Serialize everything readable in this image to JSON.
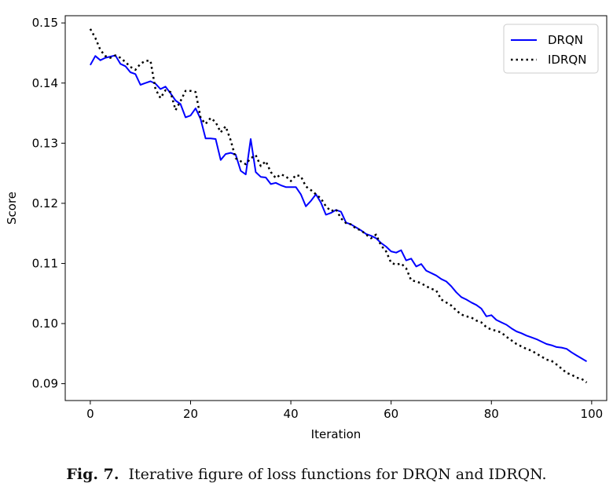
{
  "caption": {
    "label": "Fig. 7.",
    "text": "Iterative figure of loss functions for DRQN and IDRQN."
  },
  "chart_data": {
    "type": "line",
    "title": "",
    "xlabel": "Iteration",
    "ylabel": "Score",
    "xlim": [
      -5,
      103
    ],
    "ylim": [
      0.0872,
      0.1512
    ],
    "xticks": [
      0,
      20,
      40,
      60,
      80,
      100
    ],
    "yticks": [
      0.09,
      0.1,
      0.11,
      0.12,
      0.13,
      0.14,
      0.15
    ],
    "ytick_labels": [
      "0.09",
      "0.10",
      "0.11",
      "0.12",
      "0.13",
      "0.14",
      "0.15"
    ],
    "grid": false,
    "legend_position": "top-right",
    "series": [
      {
        "name": "DRQN",
        "style": "solid",
        "color": "#0000ff",
        "x": [
          0,
          1,
          2,
          3,
          4,
          5,
          6,
          7,
          8,
          9,
          10,
          11,
          12,
          13,
          14,
          15,
          16,
          17,
          18,
          19,
          20,
          21,
          22,
          23,
          24,
          25,
          26,
          27,
          28,
          29,
          30,
          31,
          32,
          33,
          34,
          35,
          36,
          37,
          38,
          39,
          40,
          41,
          42,
          43,
          44,
          45,
          46,
          47,
          48,
          49,
          50,
          51,
          52,
          53,
          54,
          55,
          56,
          57,
          58,
          59,
          60,
          61,
          62,
          63,
          64,
          65,
          66,
          67,
          68,
          69,
          70,
          71,
          72,
          73,
          74,
          75,
          76,
          77,
          78,
          79,
          80,
          81,
          82,
          83,
          84,
          85,
          86,
          87,
          88,
          89,
          90,
          91,
          92,
          93,
          94,
          95,
          96,
          97,
          98,
          99
        ],
        "y": [
          0.143,
          0.1445,
          0.1438,
          0.1442,
          0.1444,
          0.1446,
          0.1432,
          0.1428,
          0.1418,
          0.1415,
          0.1397,
          0.14,
          0.1403,
          0.1399,
          0.139,
          0.1394,
          0.1383,
          0.1371,
          0.1365,
          0.1343,
          0.1346,
          0.1358,
          0.134,
          0.1308,
          0.1308,
          0.1307,
          0.1272,
          0.1282,
          0.1284,
          0.1281,
          0.1254,
          0.1248,
          0.1307,
          0.1252,
          0.1244,
          0.1243,
          0.1232,
          0.1234,
          0.123,
          0.1227,
          0.1227,
          0.1227,
          0.1215,
          0.1195,
          0.1204,
          0.1215,
          0.1201,
          0.1181,
          0.1184,
          0.1189,
          0.1186,
          0.1168,
          0.1165,
          0.116,
          0.1155,
          0.1149,
          0.1146,
          0.1142,
          0.1134,
          0.1128,
          0.112,
          0.1118,
          0.1122,
          0.1105,
          0.1108,
          0.1095,
          0.1099,
          0.1088,
          0.1084,
          0.108,
          0.1074,
          0.107,
          0.1062,
          0.1052,
          0.1044,
          0.104,
          0.1035,
          0.1031,
          0.1025,
          0.1012,
          0.1014,
          0.1006,
          0.1002,
          0.0998,
          0.0992,
          0.0987,
          0.0984,
          0.098,
          0.0977,
          0.0974,
          0.097,
          0.0966,
          0.0964,
          0.0961,
          0.096,
          0.0958,
          0.0952,
          0.0947,
          0.0942,
          0.0937
        ]
      },
      {
        "name": "IDRQN",
        "style": "dotted",
        "color": "#000000",
        "x": [
          0,
          1,
          2,
          3,
          4,
          5,
          6,
          7,
          8,
          9,
          10,
          11,
          12,
          13,
          14,
          15,
          16,
          17,
          18,
          19,
          20,
          21,
          22,
          23,
          24,
          25,
          26,
          27,
          28,
          29,
          30,
          31,
          32,
          33,
          34,
          35,
          36,
          37,
          38,
          39,
          40,
          41,
          42,
          43,
          44,
          45,
          46,
          47,
          48,
          49,
          50,
          51,
          52,
          53,
          54,
          55,
          56,
          57,
          58,
          59,
          60,
          61,
          62,
          63,
          64,
          65,
          66,
          67,
          68,
          69,
          70,
          71,
          72,
          73,
          74,
          75,
          76,
          77,
          78,
          79,
          80,
          81,
          82,
          83,
          84,
          85,
          86,
          87,
          88,
          89,
          90,
          91,
          92,
          93,
          94,
          95,
          96,
          97,
          98,
          99
        ],
        "y": [
          0.149,
          0.1475,
          0.1455,
          0.1445,
          0.1442,
          0.1446,
          0.1442,
          0.1435,
          0.1427,
          0.1422,
          0.1432,
          0.1437,
          0.1437,
          0.139,
          0.1375,
          0.1388,
          0.1385,
          0.1355,
          0.137,
          0.1387,
          0.1387,
          0.1385,
          0.1342,
          0.1332,
          0.1342,
          0.1335,
          0.1318,
          0.1328,
          0.1305,
          0.1275,
          0.127,
          0.1265,
          0.1275,
          0.128,
          0.1262,
          0.127,
          0.1252,
          0.1242,
          0.1248,
          0.1245,
          0.1237,
          0.1247,
          0.1245,
          0.1228,
          0.1222,
          0.1215,
          0.1208,
          0.1195,
          0.1187,
          0.119,
          0.1175,
          0.1167,
          0.1165,
          0.1158,
          0.1155,
          0.1148,
          0.1142,
          0.1148,
          0.113,
          0.112,
          0.1101,
          0.1098,
          0.11,
          0.1092,
          0.1072,
          0.107,
          0.1067,
          0.1062,
          0.1058,
          0.1055,
          0.104,
          0.1035,
          0.103,
          0.1022,
          0.1015,
          0.1012,
          0.101,
          0.1005,
          0.1002,
          0.0994,
          0.099,
          0.0988,
          0.0985,
          0.0978,
          0.0972,
          0.0966,
          0.0962,
          0.0958,
          0.0955,
          0.095,
          0.0945,
          0.094,
          0.0938,
          0.0932,
          0.0925,
          0.0918,
          0.0915,
          0.091,
          0.0908,
          0.0902
        ]
      }
    ]
  }
}
